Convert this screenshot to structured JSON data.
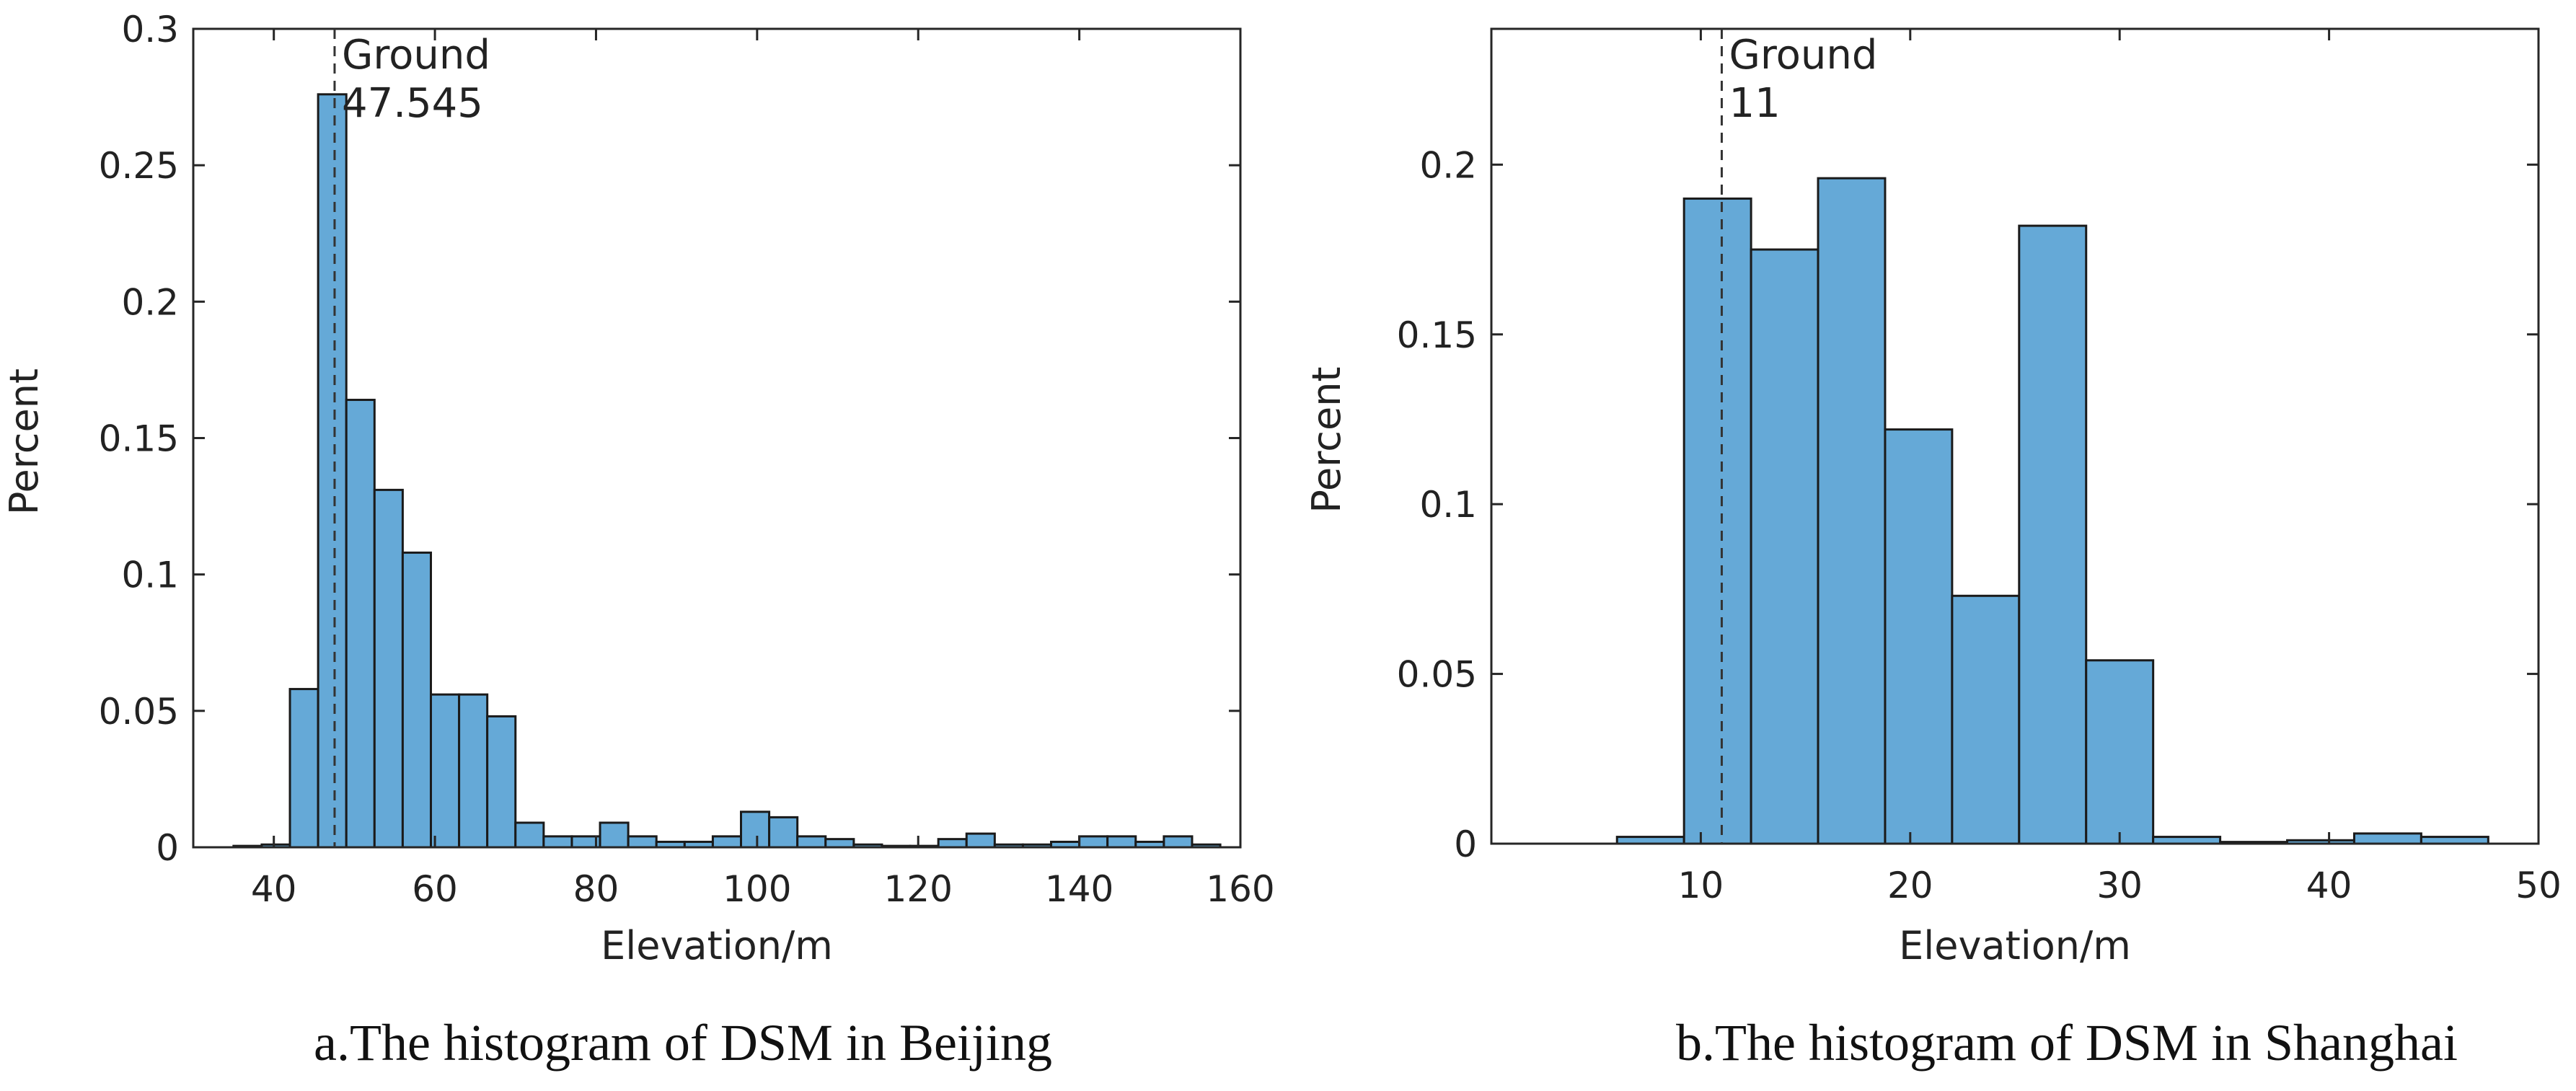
{
  "chart_data": [
    {
      "type": "bar",
      "caption": "a.The histogram of DSM in Beijing",
      "xlabel": "Elevation/m",
      "ylabel": "Percent",
      "xlim": [
        30,
        160
      ],
      "ylim": [
        0,
        0.3
      ],
      "xticks": [
        "40",
        "60",
        "80",
        "100",
        "120",
        "140",
        "160"
      ],
      "yticks": [
        "0",
        "0.05",
        "0.1",
        "0.15",
        "0.2",
        "0.25",
        "0.3"
      ],
      "grid": false,
      "bar_color": "#65a9d7",
      "annotation": {
        "x": 47.545,
        "line1": "Ground",
        "line2": "47.545"
      },
      "bins": [
        {
          "x0": 35.0,
          "x1": 38.5,
          "value": 0.0005
        },
        {
          "x0": 38.5,
          "x1": 42.0,
          "value": 0.001
        },
        {
          "x0": 42.0,
          "x1": 45.5,
          "value": 0.058
        },
        {
          "x0": 45.5,
          "x1": 49.0,
          "value": 0.276
        },
        {
          "x0": 49.0,
          "x1": 52.5,
          "value": 0.164
        },
        {
          "x0": 52.5,
          "x1": 56.0,
          "value": 0.131
        },
        {
          "x0": 56.0,
          "x1": 59.5,
          "value": 0.108
        },
        {
          "x0": 59.5,
          "x1": 63.0,
          "value": 0.056
        },
        {
          "x0": 63.0,
          "x1": 66.5,
          "value": 0.056
        },
        {
          "x0": 66.5,
          "x1": 70.0,
          "value": 0.048
        },
        {
          "x0": 70.0,
          "x1": 73.5,
          "value": 0.009
        },
        {
          "x0": 73.5,
          "x1": 77.0,
          "value": 0.004
        },
        {
          "x0": 77.0,
          "x1": 80.5,
          "value": 0.004
        },
        {
          "x0": 80.5,
          "x1": 84.0,
          "value": 0.009
        },
        {
          "x0": 84.0,
          "x1": 87.5,
          "value": 0.004
        },
        {
          "x0": 87.5,
          "x1": 91.0,
          "value": 0.002
        },
        {
          "x0": 91.0,
          "x1": 94.5,
          "value": 0.002
        },
        {
          "x0": 94.5,
          "x1": 98.0,
          "value": 0.004
        },
        {
          "x0": 98.0,
          "x1": 101.5,
          "value": 0.013
        },
        {
          "x0": 101.5,
          "x1": 105.0,
          "value": 0.011
        },
        {
          "x0": 105.0,
          "x1": 108.5,
          "value": 0.004
        },
        {
          "x0": 108.5,
          "x1": 112.0,
          "value": 0.003
        },
        {
          "x0": 112.0,
          "x1": 115.5,
          "value": 0.001
        },
        {
          "x0": 115.5,
          "x1": 119.0,
          "value": 0.0005
        },
        {
          "x0": 119.0,
          "x1": 122.5,
          "value": 0.0005
        },
        {
          "x0": 122.5,
          "x1": 126.0,
          "value": 0.003
        },
        {
          "x0": 126.0,
          "x1": 129.5,
          "value": 0.005
        },
        {
          "x0": 129.5,
          "x1": 133.0,
          "value": 0.001
        },
        {
          "x0": 133.0,
          "x1": 136.5,
          "value": 0.001
        },
        {
          "x0": 136.5,
          "x1": 140.0,
          "value": 0.002
        },
        {
          "x0": 140.0,
          "x1": 143.5,
          "value": 0.004
        },
        {
          "x0": 143.5,
          "x1": 147.0,
          "value": 0.004
        },
        {
          "x0": 147.0,
          "x1": 150.5,
          "value": 0.002
        },
        {
          "x0": 150.5,
          "x1": 154.0,
          "value": 0.004
        },
        {
          "x0": 154.0,
          "x1": 157.5,
          "value": 0.001
        }
      ]
    },
    {
      "type": "bar",
      "caption": "b.The histogram of DSM in Shanghai",
      "xlabel": "Elevation/m",
      "ylabel": "Percent",
      "xlim": [
        0,
        50
      ],
      "ylim": [
        0,
        0.24
      ],
      "xticks": [
        "10",
        "20",
        "30",
        "40",
        "50"
      ],
      "yticks": [
        "0",
        "0.05",
        "0.1",
        "0.15",
        "0.2"
      ],
      "grid": false,
      "bar_color": "#65a9d7",
      "annotation": {
        "x": 11,
        "line1": "Ground",
        "line2": "11"
      },
      "bins": [
        {
          "x0": 6.0,
          "x1": 9.2,
          "value": 0.002
        },
        {
          "x0": 9.2,
          "x1": 12.4,
          "value": 0.19
        },
        {
          "x0": 12.4,
          "x1": 15.6,
          "value": 0.175
        },
        {
          "x0": 15.6,
          "x1": 18.8,
          "value": 0.196
        },
        {
          "x0": 18.8,
          "x1": 22.0,
          "value": 0.122
        },
        {
          "x0": 22.0,
          "x1": 25.2,
          "value": 0.073
        },
        {
          "x0": 25.2,
          "x1": 28.4,
          "value": 0.182
        },
        {
          "x0": 28.4,
          "x1": 31.6,
          "value": 0.054
        },
        {
          "x0": 31.6,
          "x1": 34.8,
          "value": 0.002
        },
        {
          "x0": 34.8,
          "x1": 38.0,
          "value": 0.0005
        },
        {
          "x0": 38.0,
          "x1": 41.2,
          "value": 0.001
        },
        {
          "x0": 41.2,
          "x1": 44.4,
          "value": 0.003
        },
        {
          "x0": 44.4,
          "x1": 47.6,
          "value": 0.002
        }
      ]
    }
  ]
}
